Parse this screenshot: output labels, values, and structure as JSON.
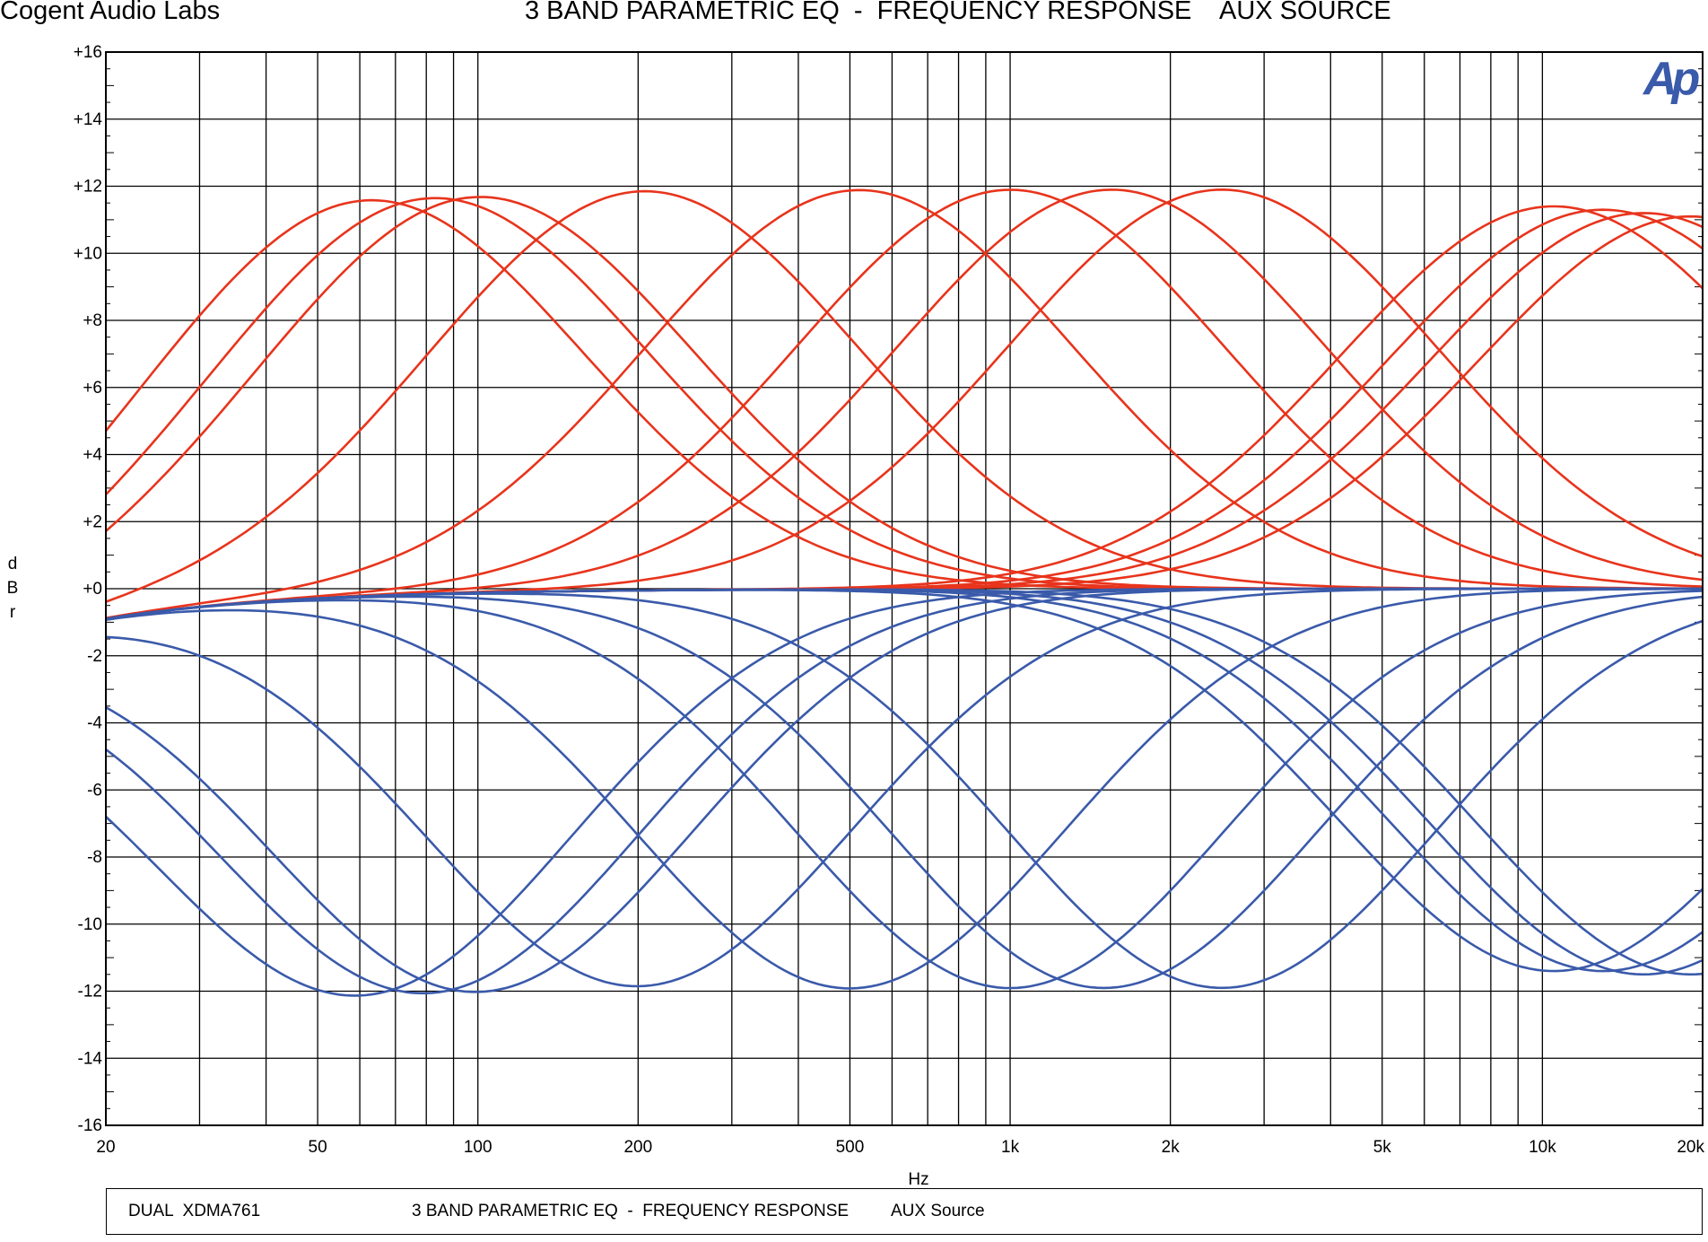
{
  "header": {
    "company": "Cogent Audio Labs",
    "title": "3 BAND PARAMETRIC EQ  -  FREQUENCY RESPONSE    AUX SOURCE"
  },
  "logo": {
    "text": "Ap",
    "color": "#3a5aaa"
  },
  "footer": {
    "device": "DUAL  XDMA761",
    "description": "3 BAND PARAMETRIC EQ  -  FREQUENCY RESPONSE",
    "source": "AUX Source"
  },
  "colors": {
    "boost": "#e8341c",
    "cut": "#3a5aaa",
    "grid": "#000000"
  },
  "chart_data": {
    "type": "line",
    "title": "3 BAND PARAMETRIC EQ  -  FREQUENCY RESPONSE    AUX SOURCE",
    "xlabel": "Hz",
    "ylabel": "dBr",
    "xscale": "log",
    "xlim": [
      20,
      20000
    ],
    "ylim": [
      -16,
      16
    ],
    "x_ticks": [
      20,
      50,
      100,
      200,
      500,
      1000,
      2000,
      5000,
      10000,
      20000
    ],
    "x_tick_labels": [
      "20",
      "50",
      "100",
      "200",
      "500",
      "1k",
      "2k",
      "5k",
      "10k",
      "20k"
    ],
    "y_ticks": [
      16,
      14,
      12,
      10,
      8,
      6,
      4,
      2,
      0,
      -2,
      -4,
      -6,
      -8,
      -10,
      -12,
      -14,
      -16
    ],
    "y_tick_labels": [
      "+16",
      "+14",
      "+12",
      "+10",
      "+8",
      "+6",
      "+4",
      "+2",
      "+0",
      "-2",
      "-4",
      "-6",
      "-8",
      "-10",
      "-12",
      "-14",
      "-16"
    ],
    "grid": true,
    "legend": "none",
    "series": [
      {
        "group": "boost",
        "center_hz": 62,
        "gain_db": 11.8,
        "octave_width": 1.5
      },
      {
        "group": "boost",
        "center_hz": 82,
        "gain_db": 11.8,
        "octave_width": 1.5
      },
      {
        "group": "boost",
        "center_hz": 100,
        "gain_db": 11.8,
        "octave_width": 1.5
      },
      {
        "group": "boost",
        "center_hz": 205,
        "gain_db": 11.9,
        "octave_width": 1.5
      },
      {
        "group": "boost",
        "center_hz": 520,
        "gain_db": 11.9,
        "octave_width": 1.5
      },
      {
        "group": "boost",
        "center_hz": 1000,
        "gain_db": 11.9,
        "octave_width": 1.5
      },
      {
        "group": "boost",
        "center_hz": 1550,
        "gain_db": 11.9,
        "octave_width": 1.5
      },
      {
        "group": "boost",
        "center_hz": 2500,
        "gain_db": 11.9,
        "octave_width": 1.5
      },
      {
        "group": "boost",
        "center_hz": 10500,
        "gain_db": 11.4,
        "octave_width": 1.5
      },
      {
        "group": "boost",
        "center_hz": 13000,
        "gain_db": 11.3,
        "octave_width": 1.5
      },
      {
        "group": "boost",
        "center_hz": 15500,
        "gain_db": 11.2,
        "octave_width": 1.5
      },
      {
        "group": "boost",
        "center_hz": 19000,
        "gain_db": 11.1,
        "octave_width": 1.5
      },
      {
        "group": "cut",
        "center_hz": 60,
        "gain_db": -11.9,
        "octave_width": 1.5
      },
      {
        "group": "cut",
        "center_hz": 80,
        "gain_db": -11.9,
        "octave_width": 1.5
      },
      {
        "group": "cut",
        "center_hz": 100,
        "gain_db": -11.9,
        "octave_width": 1.5
      },
      {
        "group": "cut",
        "center_hz": 200,
        "gain_db": -11.8,
        "octave_width": 1.5
      },
      {
        "group": "cut",
        "center_hz": 500,
        "gain_db": -11.9,
        "octave_width": 1.5
      },
      {
        "group": "cut",
        "center_hz": 1000,
        "gain_db": -11.9,
        "octave_width": 1.5
      },
      {
        "group": "cut",
        "center_hz": 1500,
        "gain_db": -11.9,
        "octave_width": 1.5
      },
      {
        "group": "cut",
        "center_hz": 2500,
        "gain_db": -11.9,
        "octave_width": 1.5
      },
      {
        "group": "cut",
        "center_hz": 10500,
        "gain_db": -11.4,
        "octave_width": 1.5
      },
      {
        "group": "cut",
        "center_hz": 13000,
        "gain_db": -11.4,
        "octave_width": 1.5
      },
      {
        "group": "cut",
        "center_hz": 15500,
        "gain_db": -11.5,
        "octave_width": 1.5
      },
      {
        "group": "cut",
        "center_hz": 19000,
        "gain_db": -11.5,
        "octave_width": 1.5
      }
    ]
  }
}
